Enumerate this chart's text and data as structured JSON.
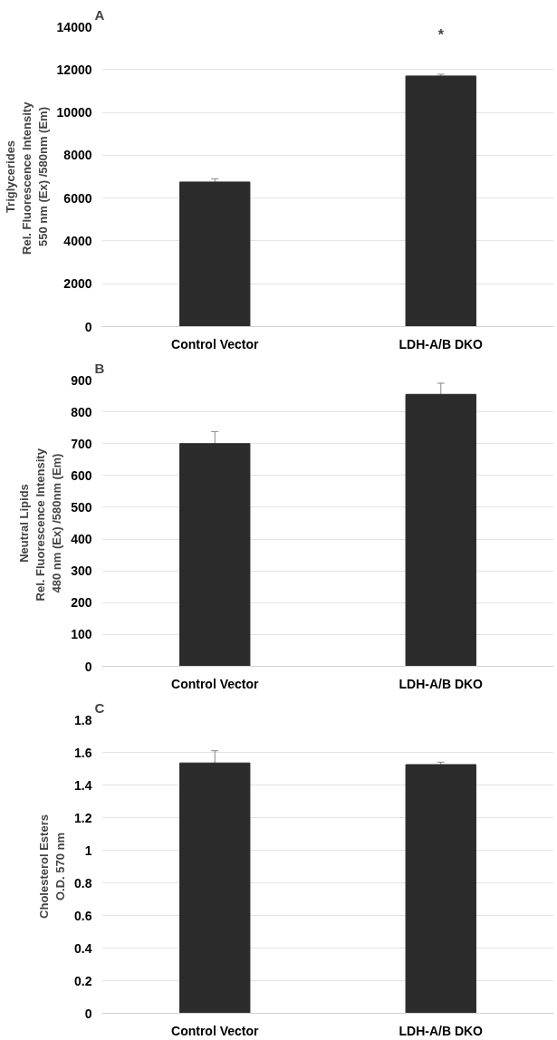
{
  "chart_data": [
    {
      "type": "bar",
      "title": "A",
      "ylabel": "Triglycerides\nRel.  Fluorescence Intensity\n550 nm (Ex) /580nm (Em)",
      "categories": [
        "Control Vector",
        "LDH-A/B DKO"
      ],
      "values": [
        6750,
        11700
      ],
      "errors": [
        150,
        80
      ],
      "color": "#2b2b2b",
      "ylim": [
        0,
        14000
      ],
      "yticks": [
        0,
        2000,
        4000,
        6000,
        8000,
        10000,
        12000,
        14000
      ],
      "grid": "y",
      "annotations": [
        "*"
      ]
    },
    {
      "type": "bar",
      "title": "B",
      "ylabel": "Neutral Lipids\nRel.  Fluorescence Intensity\n480 nm (Ex) /580nm (Em)",
      "categories": [
        "Control Vector",
        "LDH-A/B DKO"
      ],
      "values": [
        700,
        855
      ],
      "errors": [
        38,
        35
      ],
      "color": "#2b2b2b",
      "ylim": [
        0,
        900
      ],
      "yticks": [
        0,
        100,
        200,
        300,
        400,
        500,
        600,
        700,
        800,
        900
      ],
      "grid": "y"
    },
    {
      "type": "bar",
      "title": "C",
      "ylabel": "Cholesterol Esters\nO.D. 570 nm",
      "categories": [
        "Control Vector",
        "LDH-A/B DKO"
      ],
      "values": [
        1.535,
        1.525
      ],
      "errors": [
        0.075,
        0.015
      ],
      "color": "#2b2b2b",
      "ylim": [
        0,
        1.8
      ],
      "yticks": [
        0,
        0.2,
        0.4,
        0.6,
        0.8,
        1,
        1.2,
        1.4,
        1.6,
        1.8
      ],
      "grid": "y"
    }
  ]
}
